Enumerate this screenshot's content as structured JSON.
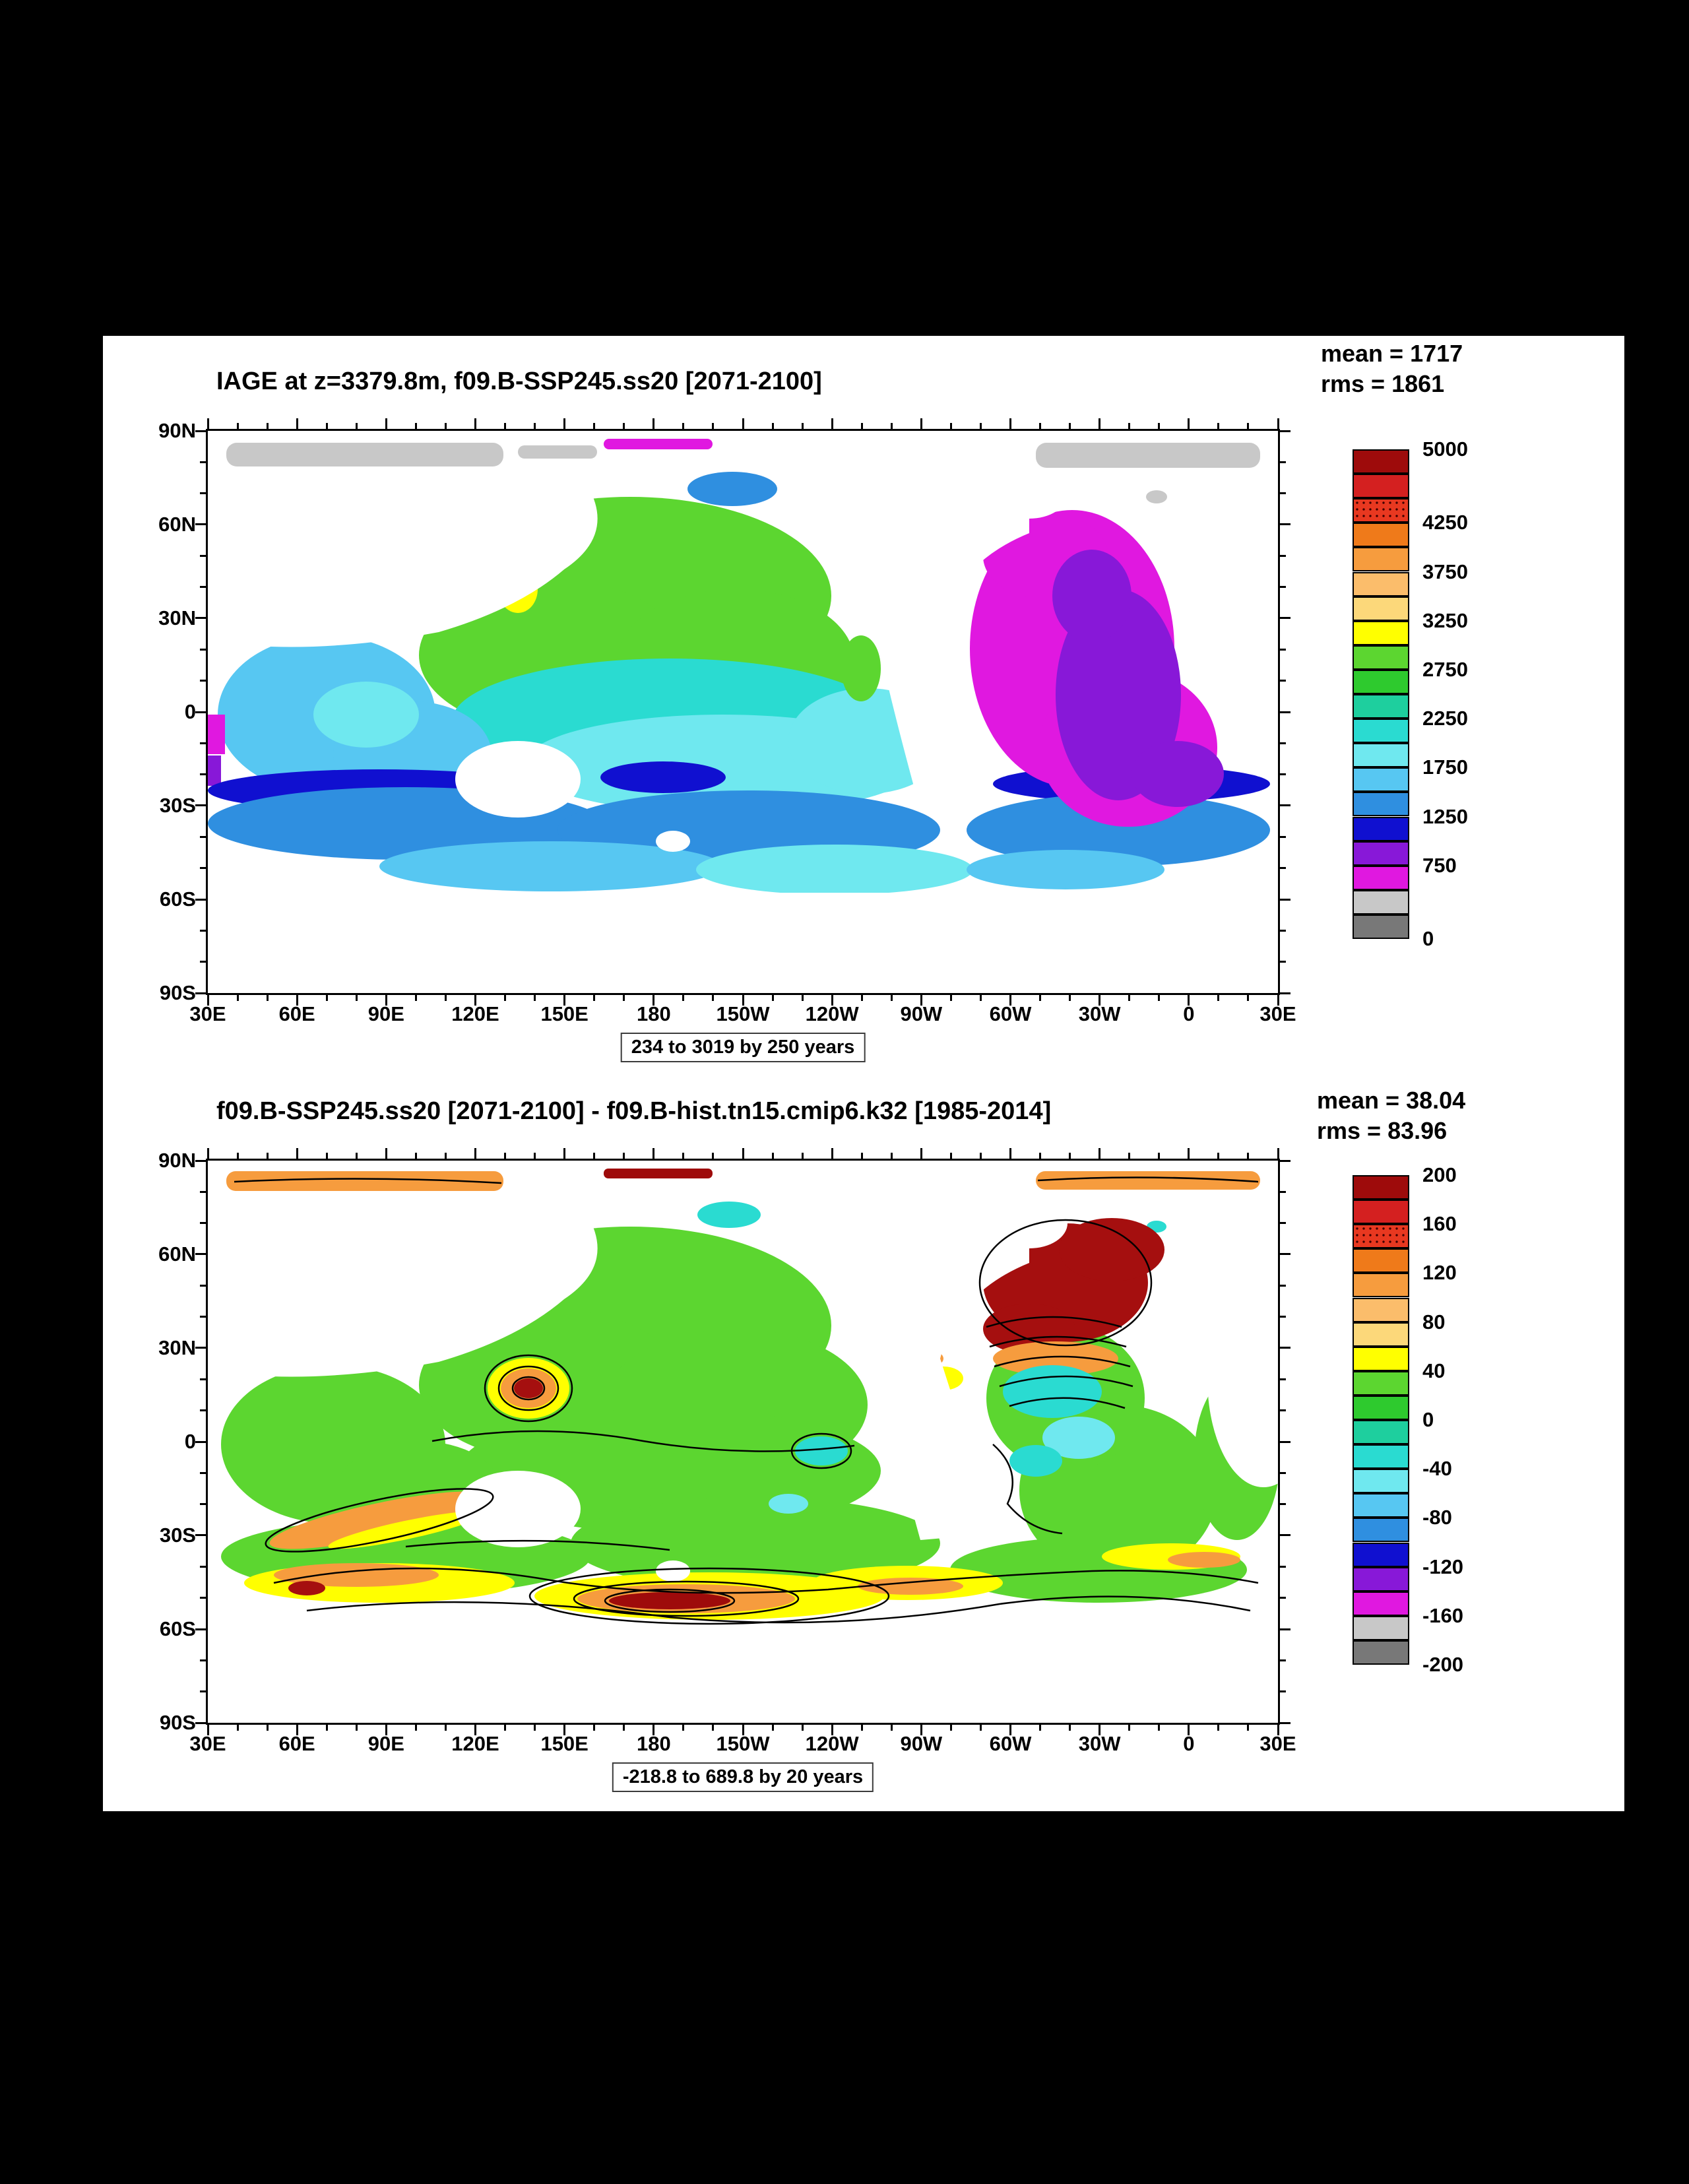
{
  "page": {
    "background": "#000000",
    "panel_background": "#ffffff"
  },
  "chart_data": [
    {
      "type": "heatmap",
      "subtype": "filled-contour-global-map",
      "title": "IAGE at z=3379.8m, f09.B-SSP245.ss20 [2071-2100]",
      "stats": {
        "mean_label": "mean = 1717",
        "rms_label": "rms = 1861",
        "mean": 1717,
        "rms": 1861
      },
      "range_label": "234 to 3019 by 250 years",
      "field_min": 234,
      "field_max": 3019,
      "contour_interval": 250,
      "x_ticks": [
        "30E",
        "60E",
        "90E",
        "120E",
        "150E",
        "180",
        "150W",
        "120W",
        "90W",
        "60W",
        "30W",
        "0",
        "30E"
      ],
      "y_ticks": [
        "90N",
        "60N",
        "30N",
        "0",
        "30S",
        "60S",
        "90S"
      ],
      "colorbar": {
        "position": "right",
        "min": 0,
        "max": 5000,
        "interval": 250,
        "labels": [
          {
            "text": "5000",
            "pos": 0.0
          },
          {
            "text": "4250",
            "pos": 0.15
          },
          {
            "text": "3750",
            "pos": 0.25
          },
          {
            "text": "3250",
            "pos": 0.35
          },
          {
            "text": "2750",
            "pos": 0.45
          },
          {
            "text": "2250",
            "pos": 0.55
          },
          {
            "text": "1750",
            "pos": 0.65
          },
          {
            "text": "1250",
            "pos": 0.75
          },
          {
            "text": "750",
            "pos": 0.85
          },
          {
            "text": "0",
            "pos": 1.0
          }
        ],
        "cells": [
          "#9e0b0b",
          "#d42020",
          "#e83820",
          "#ef7a1a",
          "#f69c3e",
          "#fbbd6b",
          "#fcd87a",
          "#ffff00",
          "#5cd630",
          "#2eca2e",
          "#1ecf9e",
          "#2adbd1",
          "#6fe8ef",
          "#57c7f2",
          "#2f8fe0",
          "#1010d0",
          "#8818d8",
          "#e018e0",
          "#c8c8c8",
          "#787878"
        ],
        "stipple_cell_index": 2
      }
    },
    {
      "type": "heatmap",
      "subtype": "filled-contour-global-map-difference",
      "title": "f09.B-SSP245.ss20 [2071-2100] - f09.B-hist.tn15.cmip6.k32 [1985-2014]",
      "stats": {
        "mean_label": "mean = 38.04",
        "rms_label": "rms = 83.96",
        "mean": 38.04,
        "rms": 83.96
      },
      "range_label": "-218.8 to 689.8 by 20 years",
      "field_min": -218.8,
      "field_max": 689.8,
      "contour_interval": 20,
      "x_ticks": [
        "30E",
        "60E",
        "90E",
        "120E",
        "150E",
        "180",
        "150W",
        "120W",
        "90W",
        "60W",
        "30W",
        "0",
        "30E"
      ],
      "y_ticks": [
        "90N",
        "60N",
        "30N",
        "0",
        "30S",
        "60S",
        "90S"
      ],
      "colorbar": {
        "position": "right",
        "min": -200,
        "max": 200,
        "interval": 20,
        "labels": [
          {
            "text": "200",
            "pos": 0.0
          },
          {
            "text": "160",
            "pos": 0.1
          },
          {
            "text": "120",
            "pos": 0.2
          },
          {
            "text": "80",
            "pos": 0.3
          },
          {
            "text": "40",
            "pos": 0.4
          },
          {
            "text": "0",
            "pos": 0.5
          },
          {
            "text": "-40",
            "pos": 0.6
          },
          {
            "text": "-80",
            "pos": 0.7
          },
          {
            "text": "-120",
            "pos": 0.8
          },
          {
            "text": "-160",
            "pos": 0.9
          },
          {
            "text": "-200",
            "pos": 1.0
          }
        ],
        "cells": [
          "#9e0b0b",
          "#d42020",
          "#e83820",
          "#ef7a1a",
          "#f69c3e",
          "#fbbd6b",
          "#fcd87a",
          "#ffff00",
          "#5cd630",
          "#2eca2e",
          "#1ecf9e",
          "#2adbd1",
          "#6fe8ef",
          "#57c7f2",
          "#2f8fe0",
          "#1010d0",
          "#8818d8",
          "#e018e0",
          "#c8c8c8",
          "#787878"
        ],
        "stipple_cell_index": 2
      }
    }
  ]
}
